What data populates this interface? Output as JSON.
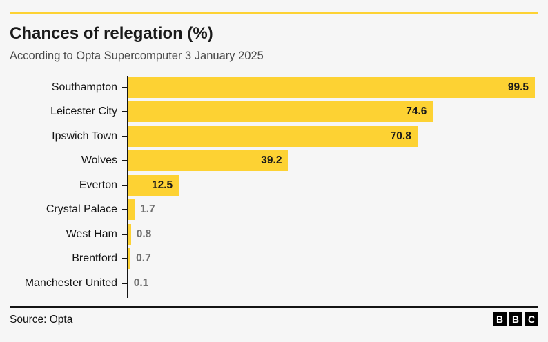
{
  "header": {
    "title": "Chances of relegation (%)",
    "subtitle": "According to Opta Supercomputer 3 January 2025"
  },
  "chart_data": {
    "type": "bar",
    "orientation": "horizontal",
    "title": "Chances of relegation (%)",
    "subtitle": "According to Opta Supercomputer 3 January 2025",
    "categories": [
      "Southampton",
      "Leicester City",
      "Ipswich Town",
      "Wolves",
      "Everton",
      "Crystal Palace",
      "West Ham",
      "Brentford",
      "Manchester United"
    ],
    "values": [
      99.5,
      74.6,
      70.8,
      39.2,
      12.5,
      1.7,
      0.8,
      0.7,
      0.1
    ],
    "xlabel": "",
    "ylabel": "",
    "xlim": [
      0,
      100
    ],
    "grid": false,
    "legend": false,
    "value_labels": true,
    "bar_color": "#FDD233"
  },
  "footer": {
    "source_label": "Source: Opta",
    "logo_letters": [
      "B",
      "B",
      "C"
    ]
  },
  "colors": {
    "accent_yellow": "#FDD233",
    "background": "#f6f6f6",
    "title_text": "#1a1a1a",
    "subtitle_text": "#4a4a4a",
    "axis": "#141414",
    "value_outside_text": "#6f6f6f"
  }
}
